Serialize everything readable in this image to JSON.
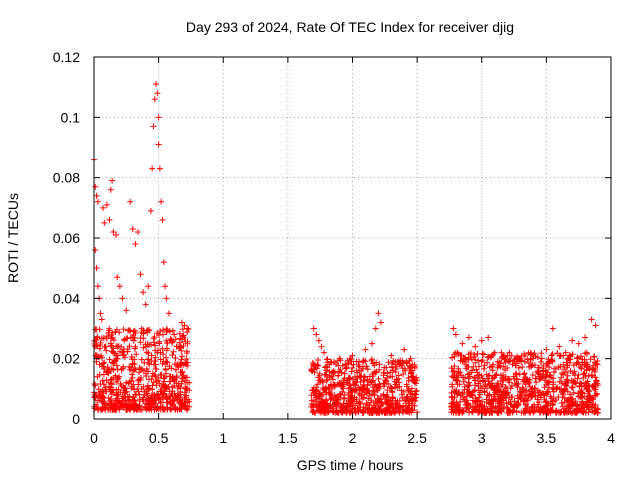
{
  "chart_data": {
    "type": "scatter",
    "title": "Day 293 of 2024, Rate Of TEC Index for receiver djig",
    "xlabel": "GPS time / hours",
    "ylabel": "ROTI / TECUs",
    "xlim": [
      0,
      4
    ],
    "ylim": [
      0,
      0.12
    ],
    "x_ticks": [
      "0",
      "0.5",
      "1",
      "1.5",
      "2",
      "2.5",
      "3",
      "3.5",
      "4"
    ],
    "y_ticks": [
      "0",
      "0.02",
      "0.04",
      "0.06",
      "0.08",
      "0.1",
      "0.12"
    ],
    "x_tick_values": [
      0,
      0.5,
      1,
      1.5,
      2,
      2.5,
      3,
      3.5,
      4
    ],
    "y_tick_values": [
      0,
      0.02,
      0.04,
      0.06,
      0.08,
      0.1,
      0.12
    ],
    "grid": true,
    "marker": "+",
    "color": "#ff0000",
    "series": [
      {
        "name": "ROTI",
        "points": [
          [
            0.0,
            0.086
          ],
          [
            0.01,
            0.077
          ],
          [
            0.02,
            0.074
          ],
          [
            0.03,
            0.072
          ],
          [
            0.01,
            0.056
          ],
          [
            0.02,
            0.05
          ],
          [
            0.03,
            0.044
          ],
          [
            0.04,
            0.04
          ],
          [
            0.05,
            0.035
          ],
          [
            0.06,
            0.033
          ],
          [
            0.07,
            0.07
          ],
          [
            0.08,
            0.065
          ],
          [
            0.1,
            0.071
          ],
          [
            0.12,
            0.066
          ],
          [
            0.13,
            0.076
          ],
          [
            0.14,
            0.079
          ],
          [
            0.15,
            0.062
          ],
          [
            0.17,
            0.061
          ],
          [
            0.18,
            0.047
          ],
          [
            0.2,
            0.044
          ],
          [
            0.22,
            0.04
          ],
          [
            0.25,
            0.036
          ],
          [
            0.28,
            0.072
          ],
          [
            0.3,
            0.063
          ],
          [
            0.32,
            0.058
          ],
          [
            0.34,
            0.062
          ],
          [
            0.36,
            0.048
          ],
          [
            0.38,
            0.042
          ],
          [
            0.4,
            0.038
          ],
          [
            0.42,
            0.044
          ],
          [
            0.44,
            0.069
          ],
          [
            0.45,
            0.083
          ],
          [
            0.46,
            0.097
          ],
          [
            0.47,
            0.106
          ],
          [
            0.48,
            0.111
          ],
          [
            0.49,
            0.108
          ],
          [
            0.5,
            0.1
          ],
          [
            0.5,
            0.091
          ],
          [
            0.51,
            0.083
          ],
          [
            0.52,
            0.072
          ],
          [
            0.53,
            0.066
          ],
          [
            0.54,
            0.052
          ],
          [
            0.55,
            0.044
          ],
          [
            0.56,
            0.04
          ],
          [
            0.58,
            0.035
          ],
          [
            0.6,
            0.026
          ],
          [
            0.62,
            0.028
          ],
          [
            0.65,
            0.024
          ],
          [
            0.68,
            0.032
          ],
          [
            0.7,
            0.031
          ],
          [
            0.72,
            0.03
          ],
          [
            1.7,
            0.03
          ],
          [
            1.72,
            0.028
          ],
          [
            1.74,
            0.026
          ],
          [
            1.76,
            0.024
          ],
          [
            1.78,
            0.022
          ],
          [
            1.9,
            0.02
          ],
          [
            2.0,
            0.021
          ],
          [
            2.05,
            0.019
          ],
          [
            2.1,
            0.023
          ],
          [
            2.15,
            0.025
          ],
          [
            2.18,
            0.03
          ],
          [
            2.2,
            0.035
          ],
          [
            2.22,
            0.032
          ],
          [
            2.3,
            0.021
          ],
          [
            2.4,
            0.023
          ],
          [
            2.45,
            0.02
          ],
          [
            2.78,
            0.03
          ],
          [
            2.8,
            0.028
          ],
          [
            2.85,
            0.025
          ],
          [
            2.9,
            0.027
          ],
          [
            2.95,
            0.024
          ],
          [
            3.0,
            0.026
          ],
          [
            3.05,
            0.027
          ],
          [
            3.1,
            0.022
          ],
          [
            3.2,
            0.021
          ],
          [
            3.3,
            0.02
          ],
          [
            3.4,
            0.021
          ],
          [
            3.5,
            0.023
          ],
          [
            3.55,
            0.03
          ],
          [
            3.6,
            0.024
          ],
          [
            3.65,
            0.022
          ],
          [
            3.7,
            0.026
          ],
          [
            3.75,
            0.025
          ],
          [
            3.8,
            0.027
          ],
          [
            3.85,
            0.033
          ],
          [
            3.88,
            0.031
          ]
        ]
      }
    ],
    "dense_segments": [
      {
        "x_range": [
          0.0,
          0.74
        ],
        "y_range": [
          0.003,
          0.03
        ],
        "count": 700
      },
      {
        "x_range": [
          1.68,
          2.5
        ],
        "y_range": [
          0.002,
          0.02
        ],
        "count": 700
      },
      {
        "x_range": [
          2.76,
          3.9
        ],
        "y_range": [
          0.002,
          0.022
        ],
        "count": 950
      }
    ]
  }
}
